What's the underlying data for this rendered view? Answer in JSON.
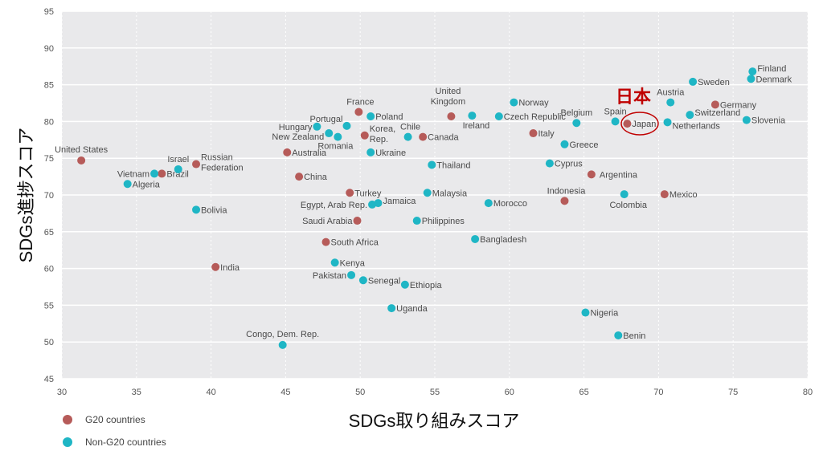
{
  "chart_data": {
    "type": "scatter",
    "title": "",
    "xlabel": "SDGs取り組みスコア",
    "ylabel": "SDGs進捗スコア",
    "xlim": [
      30,
      80
    ],
    "ylim": [
      45,
      95
    ],
    "xticks": [
      30,
      35,
      40,
      45,
      50,
      55,
      60,
      65,
      70,
      75,
      80
    ],
    "yticks": [
      45,
      50,
      55,
      60,
      65,
      70,
      75,
      80,
      85,
      90,
      95
    ],
    "grid": true,
    "legend_position": "bottom-left",
    "colors": {
      "G20 countries": "#b65b59",
      "Non-G20 countries": "#1fb6c5"
    },
    "annotation": {
      "text": "日本",
      "target": "Japan",
      "color": "#c00000"
    },
    "series": [
      {
        "name": "G20 countries",
        "points": [
          {
            "label": "United States",
            "x": 31.3,
            "y": 74.7
          },
          {
            "label": "Brazil",
            "x": 36.7,
            "y": 72.9
          },
          {
            "label": "Russian\nFederation",
            "x": 39.0,
            "y": 74.2
          },
          {
            "label": "India",
            "x": 40.3,
            "y": 60.2
          },
          {
            "label": "Australia",
            "x": 45.1,
            "y": 75.8
          },
          {
            "label": "China",
            "x": 45.9,
            "y": 72.5
          },
          {
            "label": "France",
            "x": 49.9,
            "y": 81.3
          },
          {
            "label": "Korea,\nRep.",
            "x": 50.3,
            "y": 78.1
          },
          {
            "label": "Canada",
            "x": 54.2,
            "y": 77.9
          },
          {
            "label": "Turkey",
            "x": 49.3,
            "y": 70.3
          },
          {
            "label": "Saudi Arabia",
            "x": 49.8,
            "y": 66.5
          },
          {
            "label": "South Africa",
            "x": 47.7,
            "y": 63.6
          },
          {
            "label": "United\nKingdom",
            "x": 56.1,
            "y": 80.7
          },
          {
            "label": "Italy",
            "x": 61.6,
            "y": 78.4
          },
          {
            "label": "Argentina",
            "x": 65.5,
            "y": 72.8
          },
          {
            "label": "Indonesia",
            "x": 63.7,
            "y": 69.2
          },
          {
            "label": "Japan",
            "x": 67.9,
            "y": 79.7
          },
          {
            "label": "Mexico",
            "x": 70.4,
            "y": 70.1
          },
          {
            "label": "Germany",
            "x": 73.8,
            "y": 82.3
          }
        ]
      },
      {
        "name": "Non-G20 countries",
        "points": [
          {
            "label": "Vietnam",
            "x": 36.2,
            "y": 72.9
          },
          {
            "label": "Israel",
            "x": 37.8,
            "y": 73.5
          },
          {
            "label": "Algeria",
            "x": 34.4,
            "y": 71.5
          },
          {
            "label": "Bolivia",
            "x": 39.0,
            "y": 68.0
          },
          {
            "label": "Poland",
            "x": 50.7,
            "y": 80.7
          },
          {
            "label": "Portugal",
            "x": 49.1,
            "y": 79.4
          },
          {
            "label": "Hungary",
            "x": 47.1,
            "y": 79.3
          },
          {
            "label": "New Zealand",
            "x": 47.9,
            "y": 78.4
          },
          {
            "label": "Romania",
            "x": 48.5,
            "y": 77.9
          },
          {
            "label": "Ukraine",
            "x": 50.7,
            "y": 75.8
          },
          {
            "label": "Chile",
            "x": 53.2,
            "y": 77.9
          },
          {
            "label": "Egypt, Arab Rep.",
            "x": 50.8,
            "y": 68.7
          },
          {
            "label": "Jamaica",
            "x": 51.2,
            "y": 68.9
          },
          {
            "label": "Kenya",
            "x": 48.3,
            "y": 60.8
          },
          {
            "label": "Pakistan",
            "x": 49.4,
            "y": 59.1
          },
          {
            "label": "Senegal",
            "x": 50.2,
            "y": 58.4
          },
          {
            "label": "Ethiopia",
            "x": 53.0,
            "y": 57.8
          },
          {
            "label": "Uganda",
            "x": 52.1,
            "y": 54.6
          },
          {
            "label": "Congo, Dem. Rep.",
            "x": 44.8,
            "y": 49.6
          },
          {
            "label": "Thailand",
            "x": 54.8,
            "y": 74.1
          },
          {
            "label": "Malaysia",
            "x": 54.5,
            "y": 70.3
          },
          {
            "label": "Philippines",
            "x": 53.8,
            "y": 66.5
          },
          {
            "label": "Bangladesh",
            "x": 57.7,
            "y": 64.0
          },
          {
            "label": "Morocco",
            "x": 58.6,
            "y": 68.9
          },
          {
            "label": "Ireland",
            "x": 57.5,
            "y": 80.8
          },
          {
            "label": "Czech Republic",
            "x": 59.3,
            "y": 80.7
          },
          {
            "label": "Norway",
            "x": 60.3,
            "y": 82.6
          },
          {
            "label": "Greece",
            "x": 63.7,
            "y": 76.9
          },
          {
            "label": "Belgium",
            "x": 64.5,
            "y": 79.8
          },
          {
            "label": "Cyprus",
            "x": 62.7,
            "y": 74.3
          },
          {
            "label": "Colombia",
            "x": 67.7,
            "y": 70.1
          },
          {
            "label": "Spain",
            "x": 67.1,
            "y": 80.0
          },
          {
            "label": "Austria",
            "x": 70.8,
            "y": 82.6
          },
          {
            "label": "Netherlands",
            "x": 70.6,
            "y": 79.9
          },
          {
            "label": "Sweden",
            "x": 72.3,
            "y": 85.4
          },
          {
            "label": "Switzerland",
            "x": 72.1,
            "y": 80.9
          },
          {
            "label": "Slovenia",
            "x": 75.9,
            "y": 80.2
          },
          {
            "label": "Finland",
            "x": 76.3,
            "y": 86.8
          },
          {
            "label": "Denmark",
            "x": 76.2,
            "y": 85.8
          },
          {
            "label": "Nigeria",
            "x": 65.1,
            "y": 54.0
          },
          {
            "label": "Benin",
            "x": 67.3,
            "y": 50.9
          }
        ]
      }
    ]
  }
}
